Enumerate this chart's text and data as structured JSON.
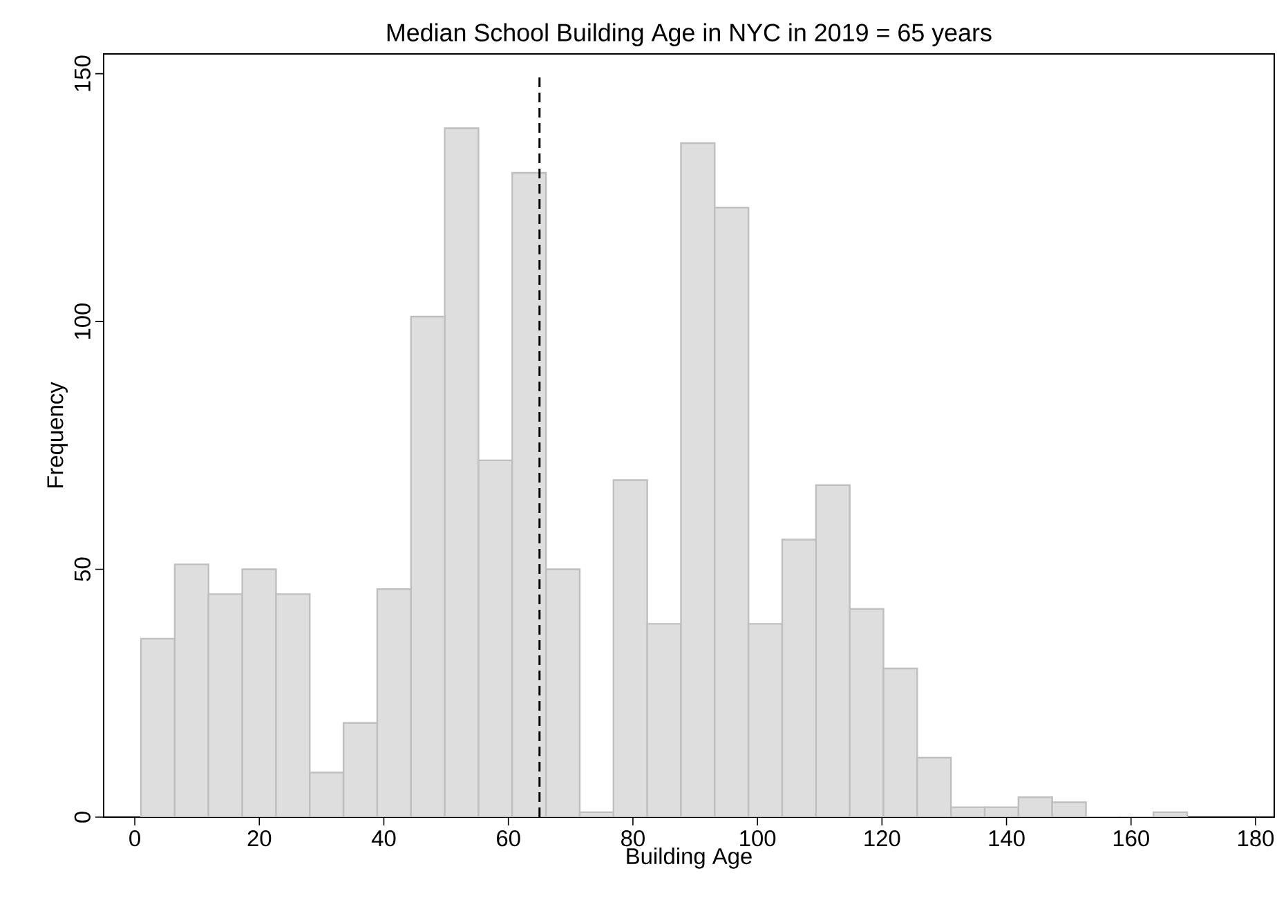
{
  "chart_data": {
    "type": "histogram",
    "title": "Median School Building Age in NYC in 2019 = 65 years",
    "xlabel": "Building Age",
    "ylabel": "Frequency",
    "bins": [
      1,
      6.42,
      11.84,
      17.26,
      22.68,
      28.1,
      33.52,
      38.94,
      44.36,
      49.78,
      55.2,
      60.62,
      66.04,
      71.46,
      76.88,
      82.3,
      87.72,
      93.14,
      98.56,
      103.98,
      109.4,
      114.82,
      120.24,
      125.66,
      131.08,
      136.5,
      141.92,
      147.34,
      152.76,
      158.18,
      163.6,
      169.02
    ],
    "values": [
      36,
      51,
      45,
      50,
      45,
      9,
      19,
      46,
      101,
      139,
      72,
      130,
      50,
      1,
      68,
      39,
      136,
      123,
      39,
      56,
      67,
      42,
      30,
      12,
      2,
      2,
      4,
      3,
      0,
      0,
      1
    ],
    "color": "#dedede",
    "xlim": [
      -5,
      183
    ],
    "ylim": [
      0,
      154
    ],
    "xticks": [
      0,
      20,
      40,
      60,
      80,
      100,
      120,
      140,
      160,
      180
    ],
    "yticks": [
      0,
      50,
      100,
      150
    ],
    "ref_lines": [
      {
        "axis": "x",
        "value": 65,
        "line_style": "dashed",
        "color": "#000000"
      }
    ]
  }
}
